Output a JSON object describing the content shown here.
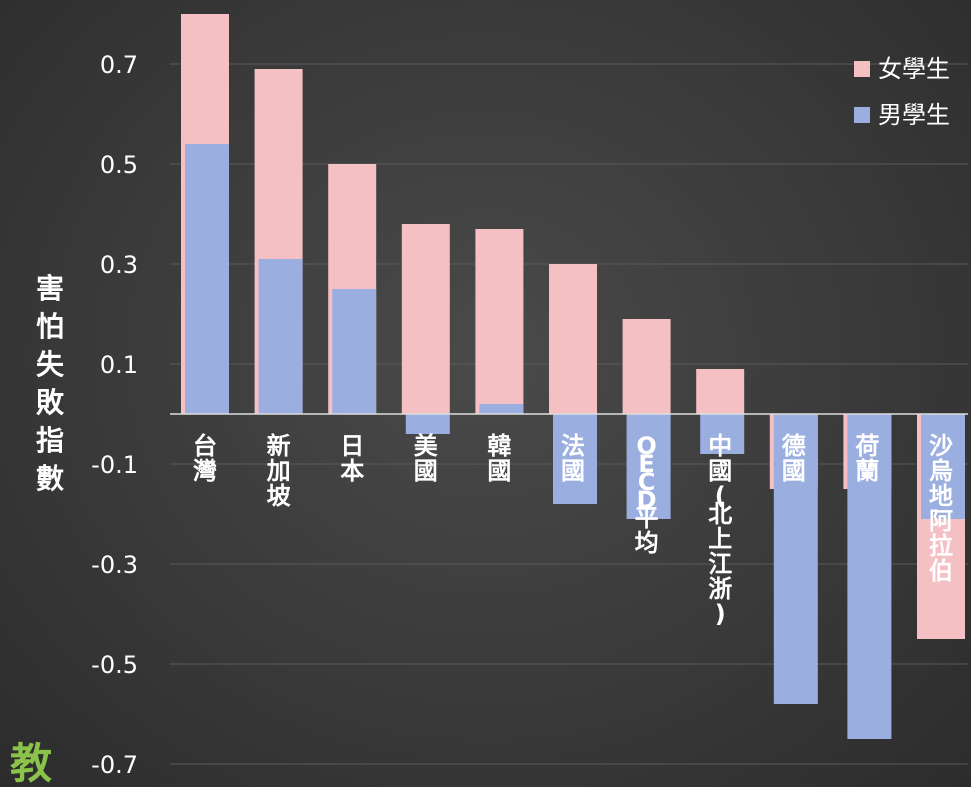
{
  "chart_data": {
    "type": "bar",
    "title": "",
    "xlabel": "",
    "ylabel": "害怕失敗指數",
    "ylim": [
      -0.7,
      0.8
    ],
    "yticks": [
      0.7,
      0.5,
      0.3,
      0.1,
      -0.1,
      -0.3,
      -0.5,
      -0.7
    ],
    "ytick_labels": [
      "0.7",
      "0.5",
      "0.3",
      "0.1",
      "-0.1",
      "-0.3",
      "-0.5",
      "-0.7"
    ],
    "grid": true,
    "legend_position": "top-right",
    "categories": [
      "台灣",
      "新加坡",
      "日本",
      "美國",
      "韓國",
      "法國",
      "OECD平均",
      "中國(北上江浙)",
      "德國",
      "荷蘭",
      "沙烏地阿拉伯"
    ],
    "series": [
      {
        "name": "女學生",
        "color": "#f4c0c4",
        "values": [
          0.8,
          0.69,
          0.5,
          0.38,
          0.37,
          0.3,
          0.19,
          0.09,
          -0.15,
          -0.15,
          -0.45
        ]
      },
      {
        "name": "男學生",
        "color": "#9aaee0",
        "values": [
          0.54,
          0.31,
          0.25,
          -0.04,
          0.02,
          -0.18,
          -0.21,
          -0.08,
          -0.58,
          -0.65,
          -0.21
        ]
      }
    ]
  },
  "colors": {
    "grid": "#5a5a5a",
    "axis": "#dddddd",
    "text": "#ffffff",
    "logo": "#8bc34a"
  },
  "logo": {
    "text": "教"
  }
}
